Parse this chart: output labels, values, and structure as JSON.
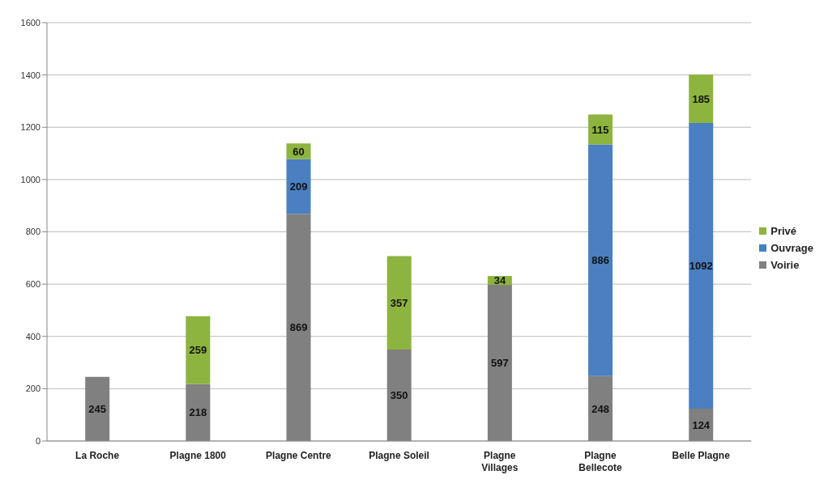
{
  "chart_data": {
    "type": "bar",
    "stacked": true,
    "categories": [
      "La Roche",
      "Plagne 1800",
      "Plagne Centre",
      "Plagne Soleil",
      "Plagne Villages",
      "Plagne Bellecote",
      "Belle Plagne"
    ],
    "series": [
      {
        "name": "Voirie",
        "color": "#808080",
        "values": [
          245,
          218,
          869,
          350,
          597,
          248,
          124
        ]
      },
      {
        "name": "Ouvrage",
        "color": "#4a7fc1",
        "values": [
          null,
          null,
          209,
          null,
          null,
          886,
          1092
        ]
      },
      {
        "name": "Privé",
        "color": "#8db43e",
        "values": [
          null,
          259,
          60,
          357,
          34,
          115,
          185
        ]
      }
    ],
    "ylim": [
      0,
      1600
    ],
    "yticks": [
      0,
      200,
      400,
      600,
      800,
      1000,
      1200,
      1400,
      1600
    ],
    "grid": "y",
    "legend": "right",
    "data_labels": true
  }
}
